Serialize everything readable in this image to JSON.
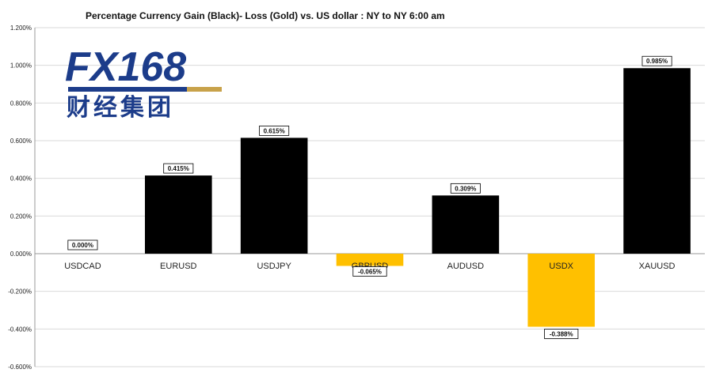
{
  "chart_data": {
    "type": "bar",
    "title": "Percentage Currency  Gain (Black)- Loss (Gold)  vs. US dollar :  NY  to  NY 6:00 am",
    "xlabel": "",
    "ylabel": "",
    "categories": [
      "USDCAD",
      "EURUSD",
      "USDJPY",
      "GBPUSD",
      "AUDUSD",
      "USDX",
      "XAUUSD"
    ],
    "values": [
      0.0,
      0.415,
      0.615,
      -0.065,
      0.309,
      -0.388,
      0.985
    ],
    "value_labels": [
      "0.000%",
      "0.415%",
      "0.615%",
      "-0.065%",
      "0.309%",
      "-0.388%",
      "0.985%"
    ],
    "ylim": [
      -0.6,
      1.2
    ],
    "yticks": [
      1.2,
      1.0,
      0.8,
      0.6,
      0.4,
      0.2,
      0.0,
      -0.2,
      -0.4,
      -0.6
    ],
    "ytick_labels": [
      "1.200%",
      "1.000%",
      "0.800%",
      "0.600%",
      "0.400%",
      "0.200%",
      "0.000%",
      "-0.200%",
      "-0.400%",
      "-0.600%"
    ],
    "grid": true,
    "legend": "none",
    "colors": {
      "gain": "#000000",
      "loss": "#ffc000",
      "grid": "#d9d9d9",
      "axis": "#999999"
    }
  },
  "logo": {
    "latin": "FX168",
    "chinese": "财经集团",
    "colors": {
      "blue": "#1c3c8a",
      "gold": "#c8a24a"
    }
  }
}
